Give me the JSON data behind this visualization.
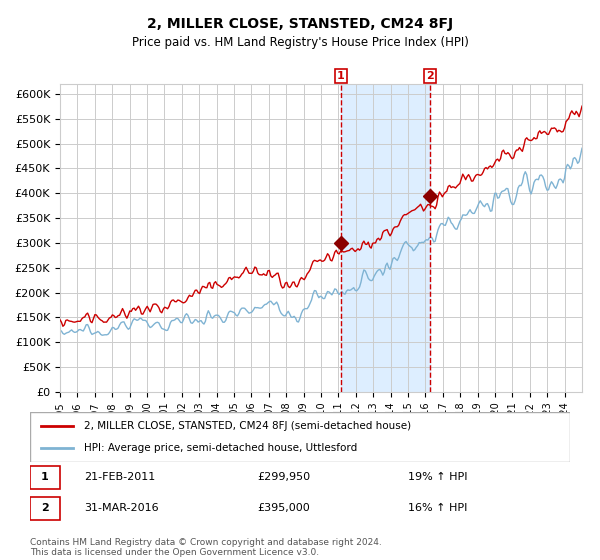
{
  "title": "2, MILLER CLOSE, STANSTED, CM24 8FJ",
  "subtitle": "Price paid vs. HM Land Registry's House Price Index (HPI)",
  "xlim_start": 1995.0,
  "xlim_end": 2025.0,
  "ylim": [
    0,
    620000
  ],
  "yticks": [
    0,
    50000,
    100000,
    150000,
    200000,
    250000,
    300000,
    350000,
    400000,
    450000,
    500000,
    550000,
    600000
  ],
  "sale1_date": 2011.13,
  "sale1_price": 299950,
  "sale1_label": "1",
  "sale1_text": "21-FEB-2011",
  "sale1_price_text": "£299,950",
  "sale1_hpi_text": "19% ↑ HPI",
  "sale2_date": 2016.25,
  "sale2_price": 395000,
  "sale2_label": "2",
  "sale2_text": "31-MAR-2016",
  "sale2_price_text": "£395,000",
  "sale2_hpi_text": "16% ↑ HPI",
  "line1_color": "#cc0000",
  "line2_color": "#7fb3d3",
  "shade_color": "#ddeeff",
  "grid_color": "#cccccc",
  "bg_color": "#ffffff",
  "legend1_label": "2, MILLER CLOSE, STANSTED, CM24 8FJ (semi-detached house)",
  "legend2_label": "HPI: Average price, semi-detached house, Uttlesford",
  "footer": "Contains HM Land Registry data © Crown copyright and database right 2024.\nThis data is licensed under the Open Government Licence v3.0.",
  "xtick_years": [
    1995,
    1996,
    1997,
    1998,
    1999,
    2000,
    2001,
    2002,
    2003,
    2004,
    2005,
    2006,
    2007,
    2008,
    2009,
    2010,
    2011,
    2012,
    2013,
    2014,
    2015,
    2016,
    2017,
    2018,
    2019,
    2020,
    2021,
    2022,
    2023,
    2024
  ]
}
